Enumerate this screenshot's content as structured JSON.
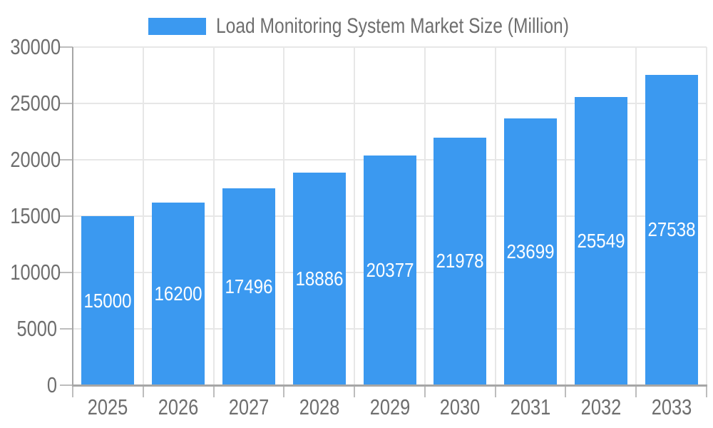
{
  "chart_data": {
    "type": "bar",
    "title": "Load Monitoring System Market Size (Million)",
    "legend": {
      "label": "Load Monitoring System Market Size (Million)",
      "position": "top"
    },
    "categories": [
      "2025",
      "2026",
      "2027",
      "2028",
      "2029",
      "2030",
      "2031",
      "2032",
      "2033"
    ],
    "series": [
      {
        "name": "Load Monitoring System Market Size (Million)",
        "values": [
          15000,
          16200,
          17496,
          18886,
          20377,
          21978,
          23699,
          25549,
          27538
        ]
      }
    ],
    "value_labels_shown": true,
    "xlabel": "",
    "ylabel": "",
    "ylim": [
      0,
      30000
    ],
    "yticks": [
      0,
      5000,
      10000,
      15000,
      20000,
      25000,
      30000
    ],
    "grid": true,
    "colors": {
      "bar": "#3B99F0",
      "grid": "#E7E7E7",
      "axis": "#A6A6A6",
      "tick": "#BDBDBD",
      "text": "#6E6E6E",
      "value_label": "#FFFFFF",
      "background": "#FFFFFF"
    }
  }
}
